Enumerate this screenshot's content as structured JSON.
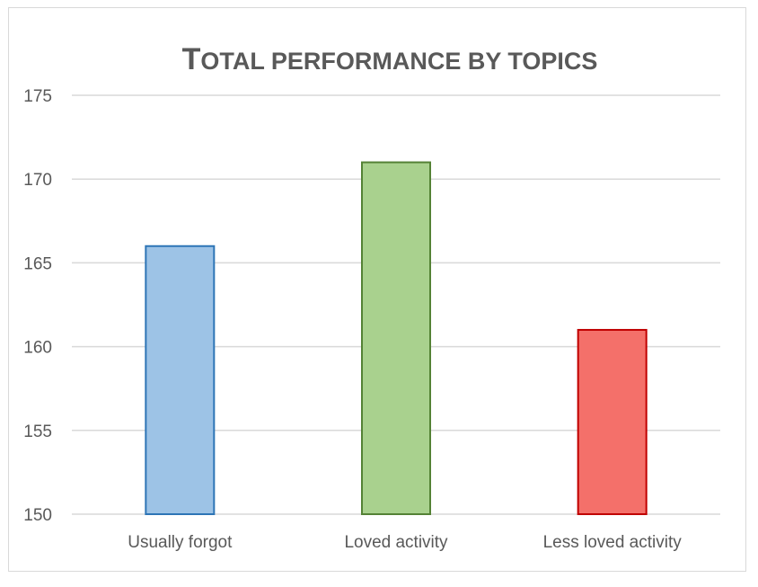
{
  "chart_data": {
    "type": "bar",
    "title": "Total performance by topics",
    "xlabel": "",
    "ylabel": "",
    "categories": [
      "Usually forgot",
      "Loved activity",
      "Less loved activity"
    ],
    "values": [
      166,
      171,
      161
    ],
    "ylim": [
      150,
      175
    ],
    "yticks": [
      150,
      155,
      160,
      165,
      170,
      175
    ],
    "ytick_labels": [
      "150",
      "155",
      "160",
      "165",
      "170",
      "175"
    ],
    "grid": true,
    "legend": "none",
    "bar_colors": [
      {
        "fill": "#9dc3e6",
        "stroke": "#2e75b6"
      },
      {
        "fill": "#a9d18e",
        "stroke": "#548235"
      },
      {
        "fill": "#f4706a",
        "stroke": "#c00000"
      }
    ],
    "gridline_color": "#d9d9d9",
    "text_color": "#595959"
  }
}
